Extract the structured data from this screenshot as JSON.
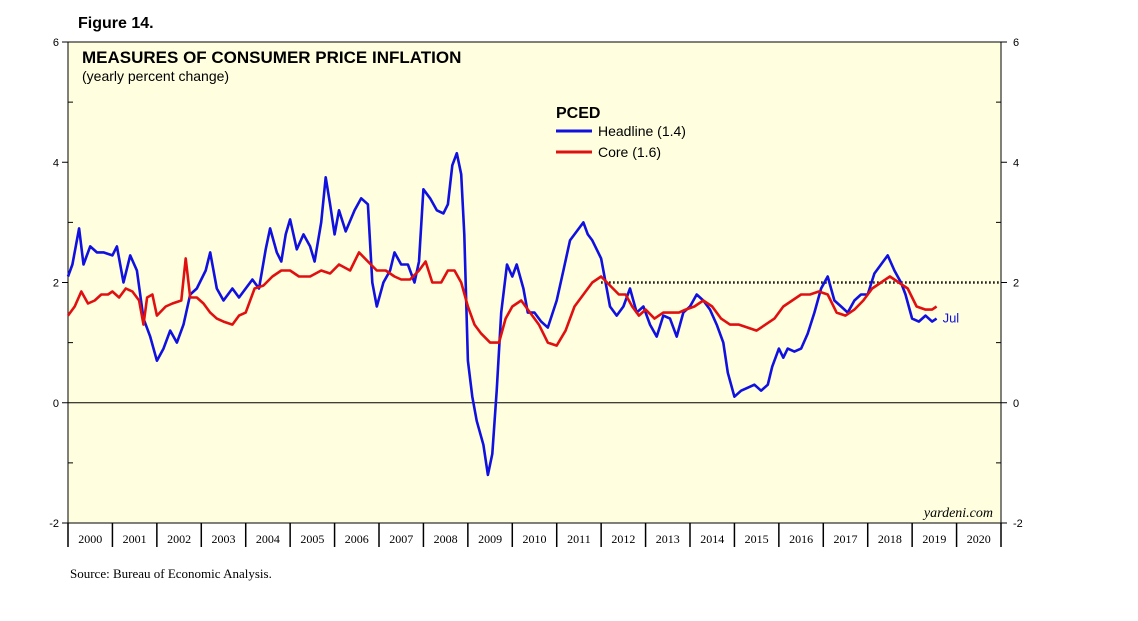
{
  "figure_label": "Figure 14.",
  "source": "Source: Bureau of Economic Analysis.",
  "watermark": "yardeni.com",
  "chart_data": {
    "type": "line",
    "title": "MEASURES OF CONSUMER PRICE INFLATION",
    "subtitle": "(yearly percent change)",
    "legend_title": "PCED",
    "end_label": "Jul",
    "xlabel": "",
    "ylabel": "",
    "ylim": [
      -2,
      6
    ],
    "yticks": [
      -2,
      0,
      2,
      4,
      6
    ],
    "x_start": 2000,
    "x_end": 2021,
    "year_labels": [
      "2000",
      "2001",
      "2002",
      "2003",
      "2004",
      "2005",
      "2006",
      "2007",
      "2008",
      "2009",
      "2010",
      "2011",
      "2012",
      "2013",
      "2014",
      "2015",
      "2016",
      "2017",
      "2018",
      "2019",
      "2020"
    ],
    "reference_line": {
      "value": 2,
      "style": "dotted",
      "x_from": 2012.0
    },
    "zero_line": 0,
    "series": [
      {
        "name": "Headline",
        "legend": "Headline (1.4)",
        "color": "#1010e0",
        "points": [
          [
            2000.0,
            2.1
          ],
          [
            2000.1,
            2.3
          ],
          [
            2000.25,
            2.9
          ],
          [
            2000.35,
            2.3
          ],
          [
            2000.5,
            2.6
          ],
          [
            2000.65,
            2.5
          ],
          [
            2000.8,
            2.5
          ],
          [
            2001.0,
            2.45
          ],
          [
            2001.1,
            2.6
          ],
          [
            2001.25,
            2.0
          ],
          [
            2001.4,
            2.45
          ],
          [
            2001.55,
            2.2
          ],
          [
            2001.7,
            1.4
          ],
          [
            2001.85,
            1.1
          ],
          [
            2002.0,
            0.7
          ],
          [
            2002.15,
            0.9
          ],
          [
            2002.3,
            1.2
          ],
          [
            2002.45,
            1.0
          ],
          [
            2002.6,
            1.3
          ],
          [
            2002.75,
            1.8
          ],
          [
            2002.9,
            1.9
          ],
          [
            2003.1,
            2.2
          ],
          [
            2003.2,
            2.5
          ],
          [
            2003.35,
            1.9
          ],
          [
            2003.5,
            1.7
          ],
          [
            2003.7,
            1.9
          ],
          [
            2003.85,
            1.75
          ],
          [
            2004.0,
            1.9
          ],
          [
            2004.15,
            2.05
          ],
          [
            2004.3,
            1.9
          ],
          [
            2004.45,
            2.55
          ],
          [
            2004.55,
            2.9
          ],
          [
            2004.7,
            2.5
          ],
          [
            2004.8,
            2.35
          ],
          [
            2004.9,
            2.8
          ],
          [
            2005.0,
            3.05
          ],
          [
            2005.15,
            2.55
          ],
          [
            2005.3,
            2.8
          ],
          [
            2005.45,
            2.6
          ],
          [
            2005.55,
            2.35
          ],
          [
            2005.7,
            3.0
          ],
          [
            2005.8,
            3.75
          ],
          [
            2005.9,
            3.3
          ],
          [
            2006.0,
            2.8
          ],
          [
            2006.1,
            3.2
          ],
          [
            2006.25,
            2.85
          ],
          [
            2006.45,
            3.2
          ],
          [
            2006.6,
            3.4
          ],
          [
            2006.75,
            3.3
          ],
          [
            2006.85,
            2.0
          ],
          [
            2006.95,
            1.6
          ],
          [
            2007.1,
            2.0
          ],
          [
            2007.25,
            2.2
          ],
          [
            2007.35,
            2.5
          ],
          [
            2007.5,
            2.3
          ],
          [
            2007.65,
            2.3
          ],
          [
            2007.8,
            2.0
          ],
          [
            2007.9,
            2.35
          ],
          [
            2008.0,
            3.55
          ],
          [
            2008.15,
            3.4
          ],
          [
            2008.3,
            3.2
          ],
          [
            2008.45,
            3.15
          ],
          [
            2008.55,
            3.3
          ],
          [
            2008.65,
            3.95
          ],
          [
            2008.75,
            4.15
          ],
          [
            2008.85,
            3.8
          ],
          [
            2008.92,
            2.8
          ],
          [
            2009.0,
            0.7
          ],
          [
            2009.1,
            0.1
          ],
          [
            2009.2,
            -0.3
          ],
          [
            2009.35,
            -0.7
          ],
          [
            2009.45,
            -1.2
          ],
          [
            2009.55,
            -0.85
          ],
          [
            2009.65,
            0.2
          ],
          [
            2009.75,
            1.5
          ],
          [
            2009.88,
            2.3
          ],
          [
            2010.0,
            2.1
          ],
          [
            2010.1,
            2.3
          ],
          [
            2010.25,
            1.9
          ],
          [
            2010.35,
            1.5
          ],
          [
            2010.5,
            1.5
          ],
          [
            2010.65,
            1.35
          ],
          [
            2010.8,
            1.25
          ],
          [
            2011.0,
            1.7
          ],
          [
            2011.15,
            2.2
          ],
          [
            2011.3,
            2.7
          ],
          [
            2011.45,
            2.85
          ],
          [
            2011.6,
            3.0
          ],
          [
            2011.7,
            2.8
          ],
          [
            2011.8,
            2.7
          ],
          [
            2012.0,
            2.4
          ],
          [
            2012.1,
            2.0
          ],
          [
            2012.2,
            1.6
          ],
          [
            2012.35,
            1.45
          ],
          [
            2012.5,
            1.6
          ],
          [
            2012.65,
            1.9
          ],
          [
            2012.8,
            1.5
          ],
          [
            2012.95,
            1.6
          ],
          [
            2013.1,
            1.3
          ],
          [
            2013.25,
            1.1
          ],
          [
            2013.4,
            1.45
          ],
          [
            2013.55,
            1.4
          ],
          [
            2013.7,
            1.1
          ],
          [
            2013.85,
            1.5
          ],
          [
            2014.0,
            1.6
          ],
          [
            2014.15,
            1.8
          ],
          [
            2014.3,
            1.7
          ],
          [
            2014.45,
            1.55
          ],
          [
            2014.6,
            1.3
          ],
          [
            2014.75,
            1.0
          ],
          [
            2014.85,
            0.5
          ],
          [
            2015.0,
            0.1
          ],
          [
            2015.15,
            0.2
          ],
          [
            2015.3,
            0.25
          ],
          [
            2015.45,
            0.3
          ],
          [
            2015.6,
            0.2
          ],
          [
            2015.75,
            0.3
          ],
          [
            2015.85,
            0.6
          ],
          [
            2016.0,
            0.9
          ],
          [
            2016.1,
            0.75
          ],
          [
            2016.2,
            0.9
          ],
          [
            2016.35,
            0.85
          ],
          [
            2016.5,
            0.9
          ],
          [
            2016.65,
            1.15
          ],
          [
            2016.8,
            1.5
          ],
          [
            2016.95,
            1.9
          ],
          [
            2017.1,
            2.1
          ],
          [
            2017.25,
            1.7
          ],
          [
            2017.4,
            1.6
          ],
          [
            2017.55,
            1.5
          ],
          [
            2017.7,
            1.7
          ],
          [
            2017.85,
            1.8
          ],
          [
            2018.0,
            1.8
          ],
          [
            2018.15,
            2.15
          ],
          [
            2018.3,
            2.3
          ],
          [
            2018.45,
            2.45
          ],
          [
            2018.6,
            2.2
          ],
          [
            2018.75,
            2.0
          ],
          [
            2018.85,
            1.8
          ],
          [
            2019.0,
            1.4
          ],
          [
            2019.15,
            1.35
          ],
          [
            2019.3,
            1.45
          ],
          [
            2019.45,
            1.35
          ],
          [
            2019.55,
            1.4
          ]
        ]
      },
      {
        "name": "Core",
        "legend": "Core (1.6)",
        "color": "#e01010",
        "points": [
          [
            2000.0,
            1.45
          ],
          [
            2000.15,
            1.6
          ],
          [
            2000.3,
            1.85
          ],
          [
            2000.45,
            1.65
          ],
          [
            2000.6,
            1.7
          ],
          [
            2000.75,
            1.8
          ],
          [
            2000.9,
            1.8
          ],
          [
            2001.0,
            1.85
          ],
          [
            2001.15,
            1.75
          ],
          [
            2001.3,
            1.9
          ],
          [
            2001.45,
            1.85
          ],
          [
            2001.6,
            1.7
          ],
          [
            2001.7,
            1.3
          ],
          [
            2001.78,
            1.75
          ],
          [
            2001.9,
            1.8
          ],
          [
            2002.0,
            1.45
          ],
          [
            2002.2,
            1.6
          ],
          [
            2002.35,
            1.65
          ],
          [
            2002.55,
            1.7
          ],
          [
            2002.65,
            2.4
          ],
          [
            2002.75,
            1.75
          ],
          [
            2002.9,
            1.75
          ],
          [
            2003.05,
            1.65
          ],
          [
            2003.2,
            1.5
          ],
          [
            2003.35,
            1.4
          ],
          [
            2003.5,
            1.35
          ],
          [
            2003.7,
            1.3
          ],
          [
            2003.85,
            1.45
          ],
          [
            2004.0,
            1.5
          ],
          [
            2004.2,
            1.9
          ],
          [
            2004.4,
            1.95
          ],
          [
            2004.6,
            2.1
          ],
          [
            2004.8,
            2.2
          ],
          [
            2005.0,
            2.2
          ],
          [
            2005.2,
            2.1
          ],
          [
            2005.45,
            2.1
          ],
          [
            2005.7,
            2.2
          ],
          [
            2005.9,
            2.15
          ],
          [
            2006.1,
            2.3
          ],
          [
            2006.35,
            2.2
          ],
          [
            2006.55,
            2.5
          ],
          [
            2006.75,
            2.35
          ],
          [
            2006.95,
            2.2
          ],
          [
            2007.15,
            2.2
          ],
          [
            2007.35,
            2.1
          ],
          [
            2007.5,
            2.05
          ],
          [
            2007.7,
            2.05
          ],
          [
            2007.9,
            2.2
          ],
          [
            2008.05,
            2.35
          ],
          [
            2008.2,
            2.0
          ],
          [
            2008.4,
            2.0
          ],
          [
            2008.55,
            2.2
          ],
          [
            2008.7,
            2.2
          ],
          [
            2008.85,
            2.0
          ],
          [
            2009.0,
            1.6
          ],
          [
            2009.15,
            1.3
          ],
          [
            2009.3,
            1.15
          ],
          [
            2009.5,
            1.0
          ],
          [
            2009.7,
            1.0
          ],
          [
            2009.85,
            1.4
          ],
          [
            2010.0,
            1.6
          ],
          [
            2010.2,
            1.7
          ],
          [
            2010.4,
            1.5
          ],
          [
            2010.6,
            1.3
          ],
          [
            2010.8,
            1.0
          ],
          [
            2011.0,
            0.95
          ],
          [
            2011.2,
            1.2
          ],
          [
            2011.4,
            1.6
          ],
          [
            2011.6,
            1.8
          ],
          [
            2011.8,
            2.0
          ],
          [
            2012.0,
            2.1
          ],
          [
            2012.2,
            1.95
          ],
          [
            2012.4,
            1.8
          ],
          [
            2012.55,
            1.8
          ],
          [
            2012.7,
            1.6
          ],
          [
            2012.85,
            1.45
          ],
          [
            2013.0,
            1.55
          ],
          [
            2013.2,
            1.4
          ],
          [
            2013.4,
            1.5
          ],
          [
            2013.6,
            1.5
          ],
          [
            2013.75,
            1.5
          ],
          [
            2013.9,
            1.55
          ],
          [
            2014.1,
            1.6
          ],
          [
            2014.3,
            1.7
          ],
          [
            2014.5,
            1.6
          ],
          [
            2014.7,
            1.4
          ],
          [
            2014.9,
            1.3
          ],
          [
            2015.1,
            1.3
          ],
          [
            2015.3,
            1.25
          ],
          [
            2015.5,
            1.2
          ],
          [
            2015.7,
            1.3
          ],
          [
            2015.9,
            1.4
          ],
          [
            2016.1,
            1.6
          ],
          [
            2016.3,
            1.7
          ],
          [
            2016.5,
            1.8
          ],
          [
            2016.7,
            1.8
          ],
          [
            2016.9,
            1.85
          ],
          [
            2017.1,
            1.8
          ],
          [
            2017.3,
            1.5
          ],
          [
            2017.5,
            1.45
          ],
          [
            2017.7,
            1.55
          ],
          [
            2017.9,
            1.7
          ],
          [
            2018.1,
            1.9
          ],
          [
            2018.3,
            2.0
          ],
          [
            2018.5,
            2.1
          ],
          [
            2018.7,
            2.0
          ],
          [
            2018.9,
            1.9
          ],
          [
            2019.1,
            1.6
          ],
          [
            2019.3,
            1.55
          ],
          [
            2019.45,
            1.55
          ],
          [
            2019.55,
            1.6
          ]
        ]
      }
    ]
  }
}
